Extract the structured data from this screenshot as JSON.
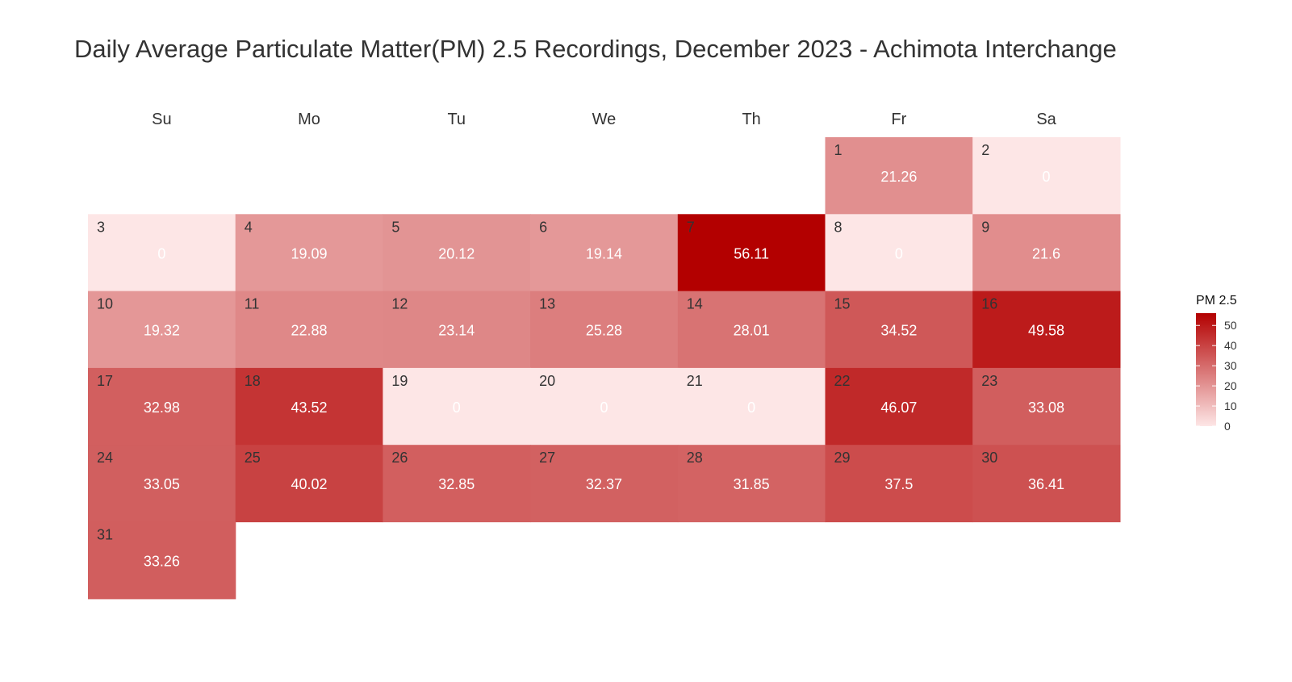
{
  "chart_data": {
    "type": "heatmap",
    "title": "Daily Average Particulate Matter(PM) 2.5 Recordings, December 2023 - Achimota Interchange",
    "weekdays": [
      "Su",
      "Mo",
      "Tu",
      "We",
      "Th",
      "Fr",
      "Sa"
    ],
    "first_weekday_index": 5,
    "days": [
      {
        "day": "1",
        "value": 21.26,
        "label": "21.26"
      },
      {
        "day": "2",
        "value": 0,
        "label": "0"
      },
      {
        "day": "3",
        "value": 0,
        "label": "0"
      },
      {
        "day": "4",
        "value": 19.09,
        "label": "19.09"
      },
      {
        "day": "5",
        "value": 20.12,
        "label": "20.12"
      },
      {
        "day": "6",
        "value": 19.14,
        "label": "19.14"
      },
      {
        "day": "7",
        "value": 56.11,
        "label": "56.11"
      },
      {
        "day": "8",
        "value": 0,
        "label": "0"
      },
      {
        "day": "9",
        "value": 21.6,
        "label": "21.6"
      },
      {
        "day": "10",
        "value": 19.32,
        "label": "19.32"
      },
      {
        "day": "11",
        "value": 22.88,
        "label": "22.88"
      },
      {
        "day": "12",
        "value": 23.14,
        "label": "23.14"
      },
      {
        "day": "13",
        "value": 25.28,
        "label": "25.28"
      },
      {
        "day": "14",
        "value": 28.01,
        "label": "28.01"
      },
      {
        "day": "15",
        "value": 34.52,
        "label": "34.52"
      },
      {
        "day": "16",
        "value": 49.58,
        "label": "49.58"
      },
      {
        "day": "17",
        "value": 32.98,
        "label": "32.98"
      },
      {
        "day": "18",
        "value": 43.52,
        "label": "43.52"
      },
      {
        "day": "19",
        "value": 0,
        "label": "0"
      },
      {
        "day": "20",
        "value": 0,
        "label": "0"
      },
      {
        "day": "21",
        "value": 0,
        "label": "0"
      },
      {
        "day": "22",
        "value": 46.07,
        "label": "46.07"
      },
      {
        "day": "23",
        "value": 33.08,
        "label": "33.08"
      },
      {
        "day": "24",
        "value": 33.05,
        "label": "33.05"
      },
      {
        "day": "25",
        "value": 40.02,
        "label": "40.02"
      },
      {
        "day": "26",
        "value": 32.85,
        "label": "32.85"
      },
      {
        "day": "27",
        "value": 32.37,
        "label": "32.37"
      },
      {
        "day": "28",
        "value": 31.85,
        "label": "31.85"
      },
      {
        "day": "29",
        "value": 37.5,
        "label": "37.5"
      },
      {
        "day": "30",
        "value": 36.41,
        "label": "36.41"
      },
      {
        "day": "31",
        "value": 33.26,
        "label": "33.26"
      }
    ],
    "legend": {
      "title": "PM 2.5",
      "ticks": [
        "0",
        "10",
        "20",
        "30",
        "40",
        "50"
      ],
      "range": [
        0,
        56.11
      ],
      "placement": "right"
    },
    "colors": {
      "low": "#fde6e6",
      "high": "#b30000"
    }
  }
}
